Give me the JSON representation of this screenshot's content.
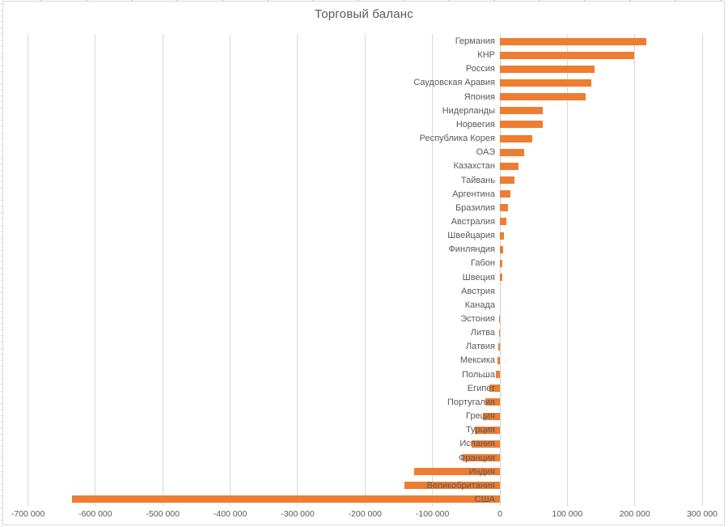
{
  "window": {
    "background": "#ffffff"
  },
  "colors": {
    "bar": "#ED7D31",
    "gridline": "#D9D9D9",
    "zero_axis_line": "#CBD0DA",
    "text": "#595959",
    "chart_frame_border": "#D9D9D9"
  },
  "chart_data": {
    "type": "bar",
    "orientation": "horizontal",
    "title": "Торговый баланс",
    "xlabel": "",
    "ylabel": "",
    "grid": "vertical-only",
    "legend": "none",
    "xlim": [
      -700000,
      300000
    ],
    "bar_color": "#ED7D31",
    "categories": [
      "Германия",
      "КНР",
      "Россия",
      "Саудовская Аравия",
      "Япония",
      "Нидерланды",
      "Норвегия",
      "Республика Корея",
      "ОАЭ",
      "Казахстан",
      "Тайвань",
      "Аргентина",
      "Бразилия",
      "Австралия",
      "Швейцария",
      "Финляндия",
      "Габон",
      "Швеция",
      "Австрия",
      "Канада",
      "Эстония",
      "Литва",
      "Латвия",
      "Мексика",
      "Польша",
      "Египет",
      "Португалия",
      "Греция",
      "Турция",
      "Испания",
      "Франция",
      "Индия",
      "Великобритания",
      "США"
    ],
    "values": [
      217000,
      199000,
      140000,
      136000,
      127000,
      64000,
      63000,
      48000,
      36000,
      28000,
      22000,
      16000,
      12000,
      10000,
      6000,
      4500,
      3500,
      3000,
      0,
      0,
      -1300,
      -1700,
      -2100,
      -4000,
      -6000,
      -16000,
      -22000,
      -25000,
      -37000,
      -42000,
      -55000,
      -127000,
      -142000,
      -635000
    ],
    "x_tick_labels": [
      "-700 000",
      "-600 000",
      "-500 000",
      "-400 000",
      "-300 000",
      "-200 000",
      "-100 000",
      "0",
      "100 000",
      "200 000",
      "300 000"
    ],
    "x_tick_values": [
      -700000,
      -600000,
      -500000,
      -400000,
      -300000,
      -200000,
      -100000,
      0,
      100000,
      200000,
      300000
    ]
  }
}
